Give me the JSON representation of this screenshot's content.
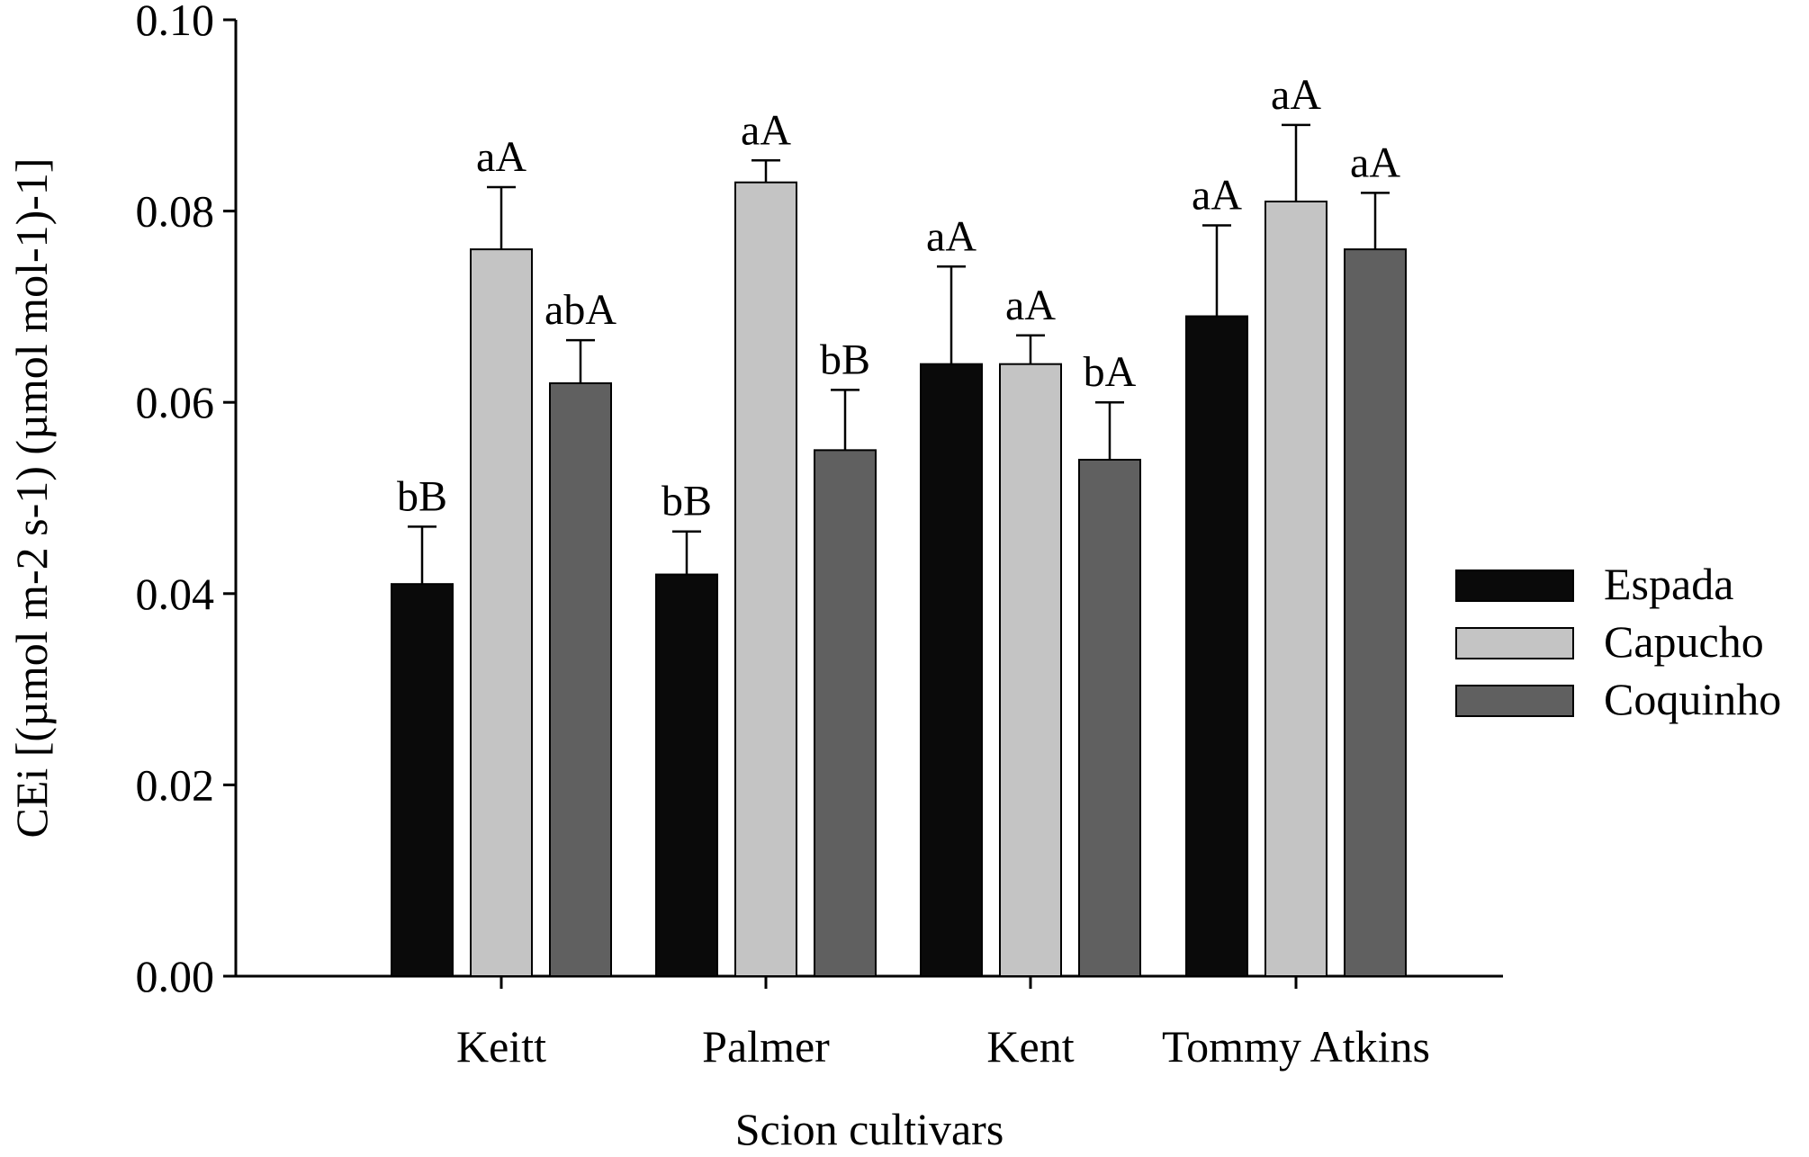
{
  "chart_data": {
    "type": "bar",
    "xlabel": "Scion cultivars",
    "ylabel": "CEi [(µmol m-2 s-1) (µmol mol-1)-1]",
    "ylim": [
      0,
      0.1
    ],
    "yticks": [
      "0.00",
      "0.02",
      "0.04",
      "0.06",
      "0.08",
      "0.10"
    ],
    "ytick_values": [
      0,
      0.02,
      0.04,
      0.06,
      0.08,
      0.1
    ],
    "categories": [
      "Keitt",
      "Palmer",
      "Kent",
      "Tommy Atkins"
    ],
    "legend_position": "right",
    "series": [
      {
        "name": "Espada",
        "color": "#0a0a0a",
        "values": [
          0.041,
          0.042,
          0.064,
          0.069
        ],
        "errors": [
          0.006,
          0.0045,
          0.0102,
          0.0095
        ],
        "labels": [
          "bB",
          "bB",
          "aA",
          "aA"
        ]
      },
      {
        "name": "Capucho",
        "color": "#c4c4c4",
        "values": [
          0.076,
          0.083,
          0.064,
          0.081
        ],
        "errors": [
          0.0065,
          0.0023,
          0.003,
          0.008
        ],
        "labels": [
          "aA",
          "aA",
          "aA",
          "aA"
        ]
      },
      {
        "name": "Coquinho",
        "color": "#606060",
        "values": [
          0.062,
          0.055,
          0.054,
          0.076
        ],
        "errors": [
          0.0045,
          0.0063,
          0.006,
          0.0059
        ],
        "labels": [
          "abA",
          "bB",
          "bA",
          "aA"
        ]
      }
    ]
  }
}
